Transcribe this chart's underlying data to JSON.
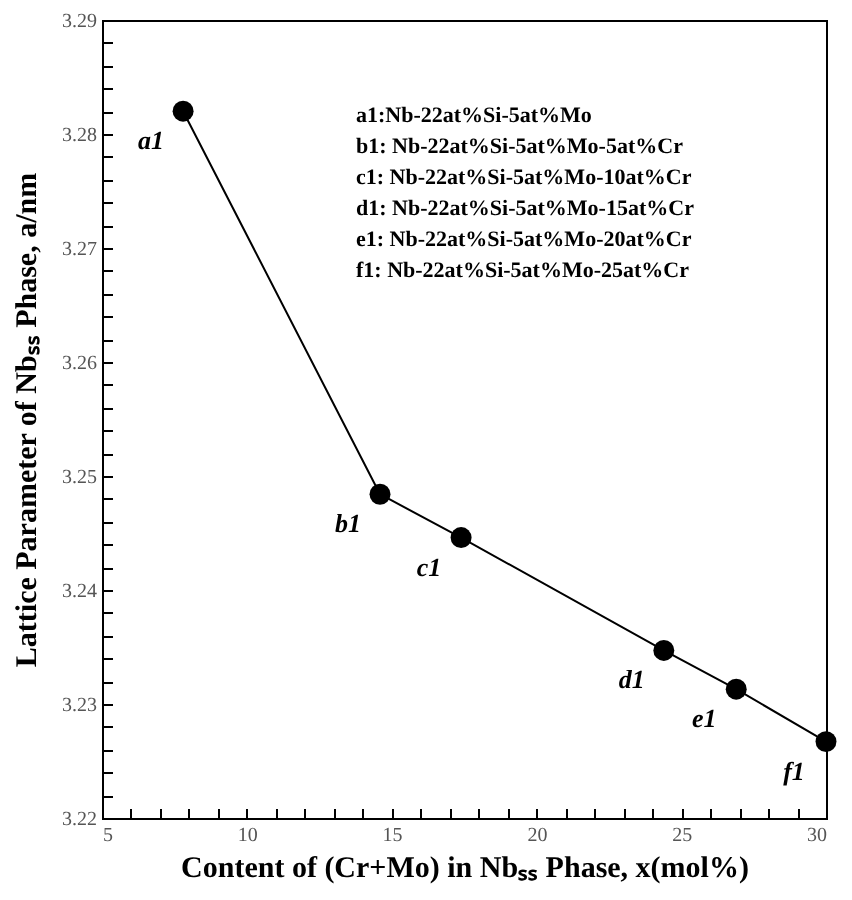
{
  "chart_data": {
    "type": "line",
    "xlabel": "Content of (Cr+Mo) in Nbₛₛ Phase, x(mol%)",
    "ylabel": "Lattice Parameter of Nbₛₛ Phase, a/nm",
    "x": [
      7.8,
      14.6,
      17.4,
      24.4,
      26.9,
      30.0
    ],
    "series": [
      {
        "color": "#000000",
        "values": [
          3.282,
          3.2484,
          3.2446,
          3.2347,
          3.2313,
          3.2267
        ]
      }
    ],
    "marker": "circle",
    "line_style": "solid",
    "xlim": [
      5,
      30
    ],
    "ylim": [
      3.22,
      3.29
    ],
    "xticks": [
      5,
      {
        "value": 6,
        "label": null
      },
      {
        "value": 7,
        "label": null
      },
      {
        "value": 8,
        "label": null
      },
      {
        "value": 9,
        "label": null
      },
      10,
      {
        "value": 11,
        "label": null
      },
      {
        "value": 12,
        "label": null
      },
      {
        "value": 13,
        "label": null
      },
      {
        "value": 14,
        "label": null
      },
      15,
      {
        "value": 16,
        "label": null
      },
      {
        "value": 17,
        "label": null
      },
      {
        "value": 18,
        "label": null
      },
      {
        "value": 19,
        "label": null
      },
      20,
      {
        "value": 21,
        "label": null
      },
      {
        "value": 22,
        "label": null
      },
      {
        "value": 23,
        "label": null
      },
      {
        "value": 24,
        "label": null
      },
      25,
      {
        "value": 26,
        "label": null
      },
      {
        "value": 27,
        "label": null
      },
      {
        "value": 28,
        "label": null
      },
      {
        "value": 29,
        "label": null
      },
      30
    ],
    "yticks": [
      3.22,
      {
        "value": 3.222,
        "label": null
      },
      {
        "value": 3.224,
        "label": null
      },
      {
        "value": 3.226,
        "label": null
      },
      {
        "value": 3.228,
        "label": null
      },
      3.23,
      {
        "value": 3.232,
        "label": null
      },
      {
        "value": 3.234,
        "label": null
      },
      {
        "value": 3.236,
        "label": null
      },
      {
        "value": 3.238,
        "label": null
      },
      3.24,
      {
        "value": 3.242,
        "label": null
      },
      {
        "value": 3.244,
        "label": null
      },
      {
        "value": 3.246,
        "label": null
      },
      {
        "value": 3.248,
        "label": null
      },
      3.25,
      {
        "value": 3.252,
        "label": null
      },
      {
        "value": 3.254,
        "label": null
      },
      {
        "value": 3.256,
        "label": null
      },
      {
        "value": 3.258,
        "label": null
      },
      3.26,
      {
        "value": 3.262,
        "label": null
      },
      {
        "value": 3.264,
        "label": null
      },
      {
        "value": 3.266,
        "label": null
      },
      {
        "value": 3.268,
        "label": null
      },
      3.27,
      {
        "value": 3.272,
        "label": null
      },
      {
        "value": 3.274,
        "label": null
      },
      {
        "value": 3.276,
        "label": null
      },
      {
        "value": 3.278,
        "label": null
      },
      3.28,
      {
        "value": 3.282,
        "label": null
      },
      {
        "value": 3.284,
        "label": null
      },
      {
        "value": 3.286,
        "label": null
      },
      {
        "value": 3.288,
        "label": null
      },
      3.29
    ],
    "grid": false,
    "annotations": [
      {
        "text": "a1",
        "x": 7.8,
        "y": 3.282
      },
      {
        "text": "b1",
        "x": 14.6,
        "y": 3.2484
      },
      {
        "text": "c1",
        "x": 17.4,
        "y": 3.2446
      },
      {
        "text": "d1",
        "x": 24.4,
        "y": 3.2347
      },
      {
        "text": "e1",
        "x": 26.9,
        "y": 3.2313
      },
      {
        "text": "f1",
        "x": 30.0,
        "y": 3.2267
      },
      "a1:Nb-22at%Si-5at%Mo",
      "b1: Nb-22at%Si-5at%Mo-5at%Cr",
      "c1: Nb-22at%Si-5at%Mo-10at%Cr",
      "d1: Nb-22at%Si-5at%Mo-15at%Cr",
      "e1: Nb-22at%Si-5at%Mo-20at%Cr",
      "f1: Nb-22at%Si-5at%Mo-25at%Cr"
    ]
  }
}
